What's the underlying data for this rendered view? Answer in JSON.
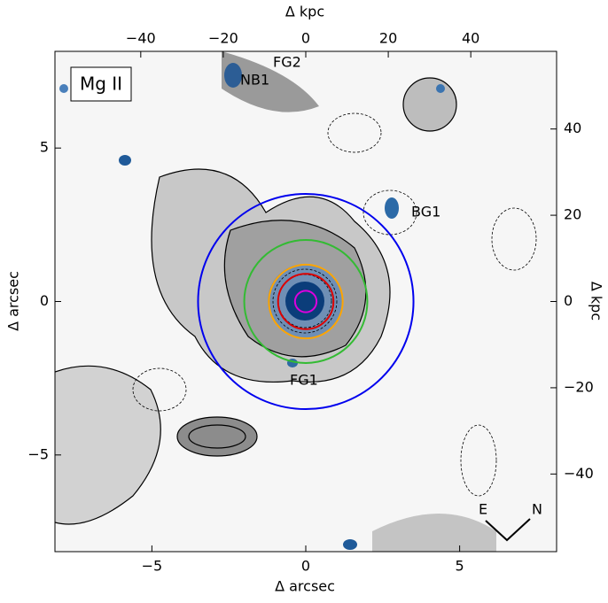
{
  "chart_data": {
    "type": "image",
    "title": "Mg II",
    "x_label": "Δ arcsec",
    "y_label": "Δ arcsec",
    "x2_label": "Δ kpc",
    "y2_label": "Δ kpc",
    "xlim": [
      -8.15,
      8.15
    ],
    "xticks": [
      -5,
      0,
      5
    ],
    "ylim": [
      -8.15,
      8.15
    ],
    "yticks": [
      -5,
      0,
      5
    ],
    "x2lim": [
      -60.8,
      60.8
    ],
    "x2ticks": [
      {
        "value": -40,
        "label": "−40"
      },
      {
        "value": -20,
        "label": "−20"
      },
      0,
      20,
      40
    ],
    "y2lim": [
      -58,
      58
    ],
    "y2ticks": [
      {
        "value": -40,
        "label": "−40"
      },
      {
        "value": -20,
        "label": "−20"
      },
      0,
      20,
      40
    ],
    "xtick_labels": [
      {
        "value": -5,
        "label": "−5"
      },
      0,
      5
    ],
    "ytick_labels": [
      {
        "value": -5,
        "label": "−5"
      },
      0,
      5
    ],
    "circles": [
      {
        "color": "#0000ee",
        "radius": 3.5
      },
      {
        "color": "#33bb33",
        "radius": 2.0
      },
      {
        "color": "#ffa500",
        "radius": 1.2
      },
      {
        "color": "#dd0000",
        "radius": 0.9
      },
      {
        "color": "#dd00dd",
        "radius": 0.35
      }
    ],
    "annotations": [
      "FG2",
      "NB1",
      "BG1",
      "FG1"
    ],
    "compass": [
      "E",
      "N"
    ]
  }
}
